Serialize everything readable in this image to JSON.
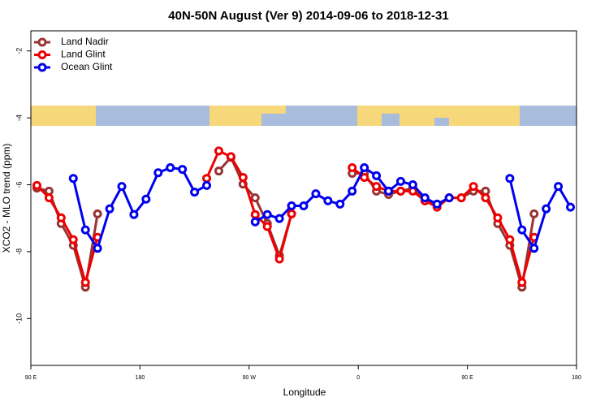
{
  "chart_data": {
    "type": "line",
    "title": "40N-50N August (Ver 9)   2014-09-06 to 2018-12-31",
    "x_label": "Longitude",
    "y_label": "XCO2 - MLO trend (ppm)",
    "xlim": [
      90,
      540
    ],
    "ylim": [
      -11.4,
      -1.4
    ],
    "xticks": [
      {
        "value": 90,
        "label": "90 E"
      },
      {
        "value": 180,
        "label": "180"
      },
      {
        "value": 270,
        "label": "90 W"
      },
      {
        "value": 360,
        "label": "0"
      },
      {
        "value": 450,
        "label": "90 E"
      },
      {
        "value": 540,
        "label": "180"
      }
    ],
    "yticks": [
      -2,
      -4,
      -6,
      -8,
      -10
    ],
    "grid": false,
    "legend": "top-left",
    "series": [
      {
        "name": "Land Nadir",
        "color": "#993333",
        "x": [
          95,
          105,
          115,
          125,
          135,
          145,
          155,
          245,
          255,
          265,
          275,
          285,
          295,
          305,
          315,
          355,
          365,
          375,
          385,
          395,
          405,
          415,
          425,
          435,
          445,
          455,
          465,
          475,
          485,
          495,
          505
        ],
        "values": [
          -6.1,
          -6.19,
          -7.16,
          -7.81,
          -9.06,
          -6.87,
          null,
          -5.59,
          -5.18,
          -5.98,
          -6.39,
          -7.16,
          -8.12,
          -6.87,
          null,
          -5.66,
          -5.66,
          -6.19,
          -6.29,
          -6.19,
          -6.1,
          -6.48,
          -6.58,
          -6.39,
          -6.39,
          -6.19,
          -6.19,
          -7.16,
          -7.81,
          -9.06,
          -6.87
        ]
      },
      {
        "name": "Land Glint",
        "color": "#ee0000",
        "x": [
          95,
          105,
          115,
          125,
          135,
          145,
          155,
          235,
          245,
          255,
          265,
          275,
          285,
          295,
          305,
          315,
          355,
          365,
          375,
          385,
          395,
          405,
          415,
          425,
          435,
          445,
          455,
          465,
          475,
          485,
          495,
          505
        ],
        "values": [
          -6.02,
          -6.39,
          -6.99,
          -7.64,
          -8.92,
          -7.57,
          null,
          -5.81,
          -4.99,
          -5.16,
          -5.78,
          -6.89,
          -7.25,
          -8.22,
          -6.87,
          null,
          -5.49,
          -5.78,
          -6.05,
          -6.19,
          -6.19,
          -6.19,
          -6.48,
          -6.67,
          -6.39,
          -6.39,
          -6.05,
          -6.39,
          -6.99,
          -7.64,
          -8.92,
          -7.57
        ]
      },
      {
        "name": "Ocean Glint",
        "color": "#0000ee",
        "x": [
          125,
          135,
          145,
          155,
          165,
          175,
          185,
          195,
          205,
          215,
          225,
          235,
          255,
          275,
          285,
          295,
          305,
          315,
          325,
          335,
          345,
          355,
          365,
          375,
          385,
          395,
          405,
          415,
          425,
          435,
          455,
          485,
          495,
          505,
          515,
          525,
          535
        ],
        "values": [
          -5.81,
          -7.35,
          -7.9,
          -6.72,
          -6.05,
          -6.89,
          -6.43,
          -5.64,
          -5.49,
          -5.54,
          -6.22,
          -6.02,
          null,
          -7.11,
          -6.89,
          -7.01,
          -6.63,
          -6.63,
          -6.27,
          -6.48,
          -6.58,
          -6.19,
          -5.49,
          -5.73,
          -6.19,
          -5.9,
          -6.0,
          -6.39,
          -6.58,
          -6.39,
          null,
          -5.81,
          -7.35,
          -7.9,
          -6.72,
          -6.05,
          -6.67
        ]
      }
    ]
  }
}
